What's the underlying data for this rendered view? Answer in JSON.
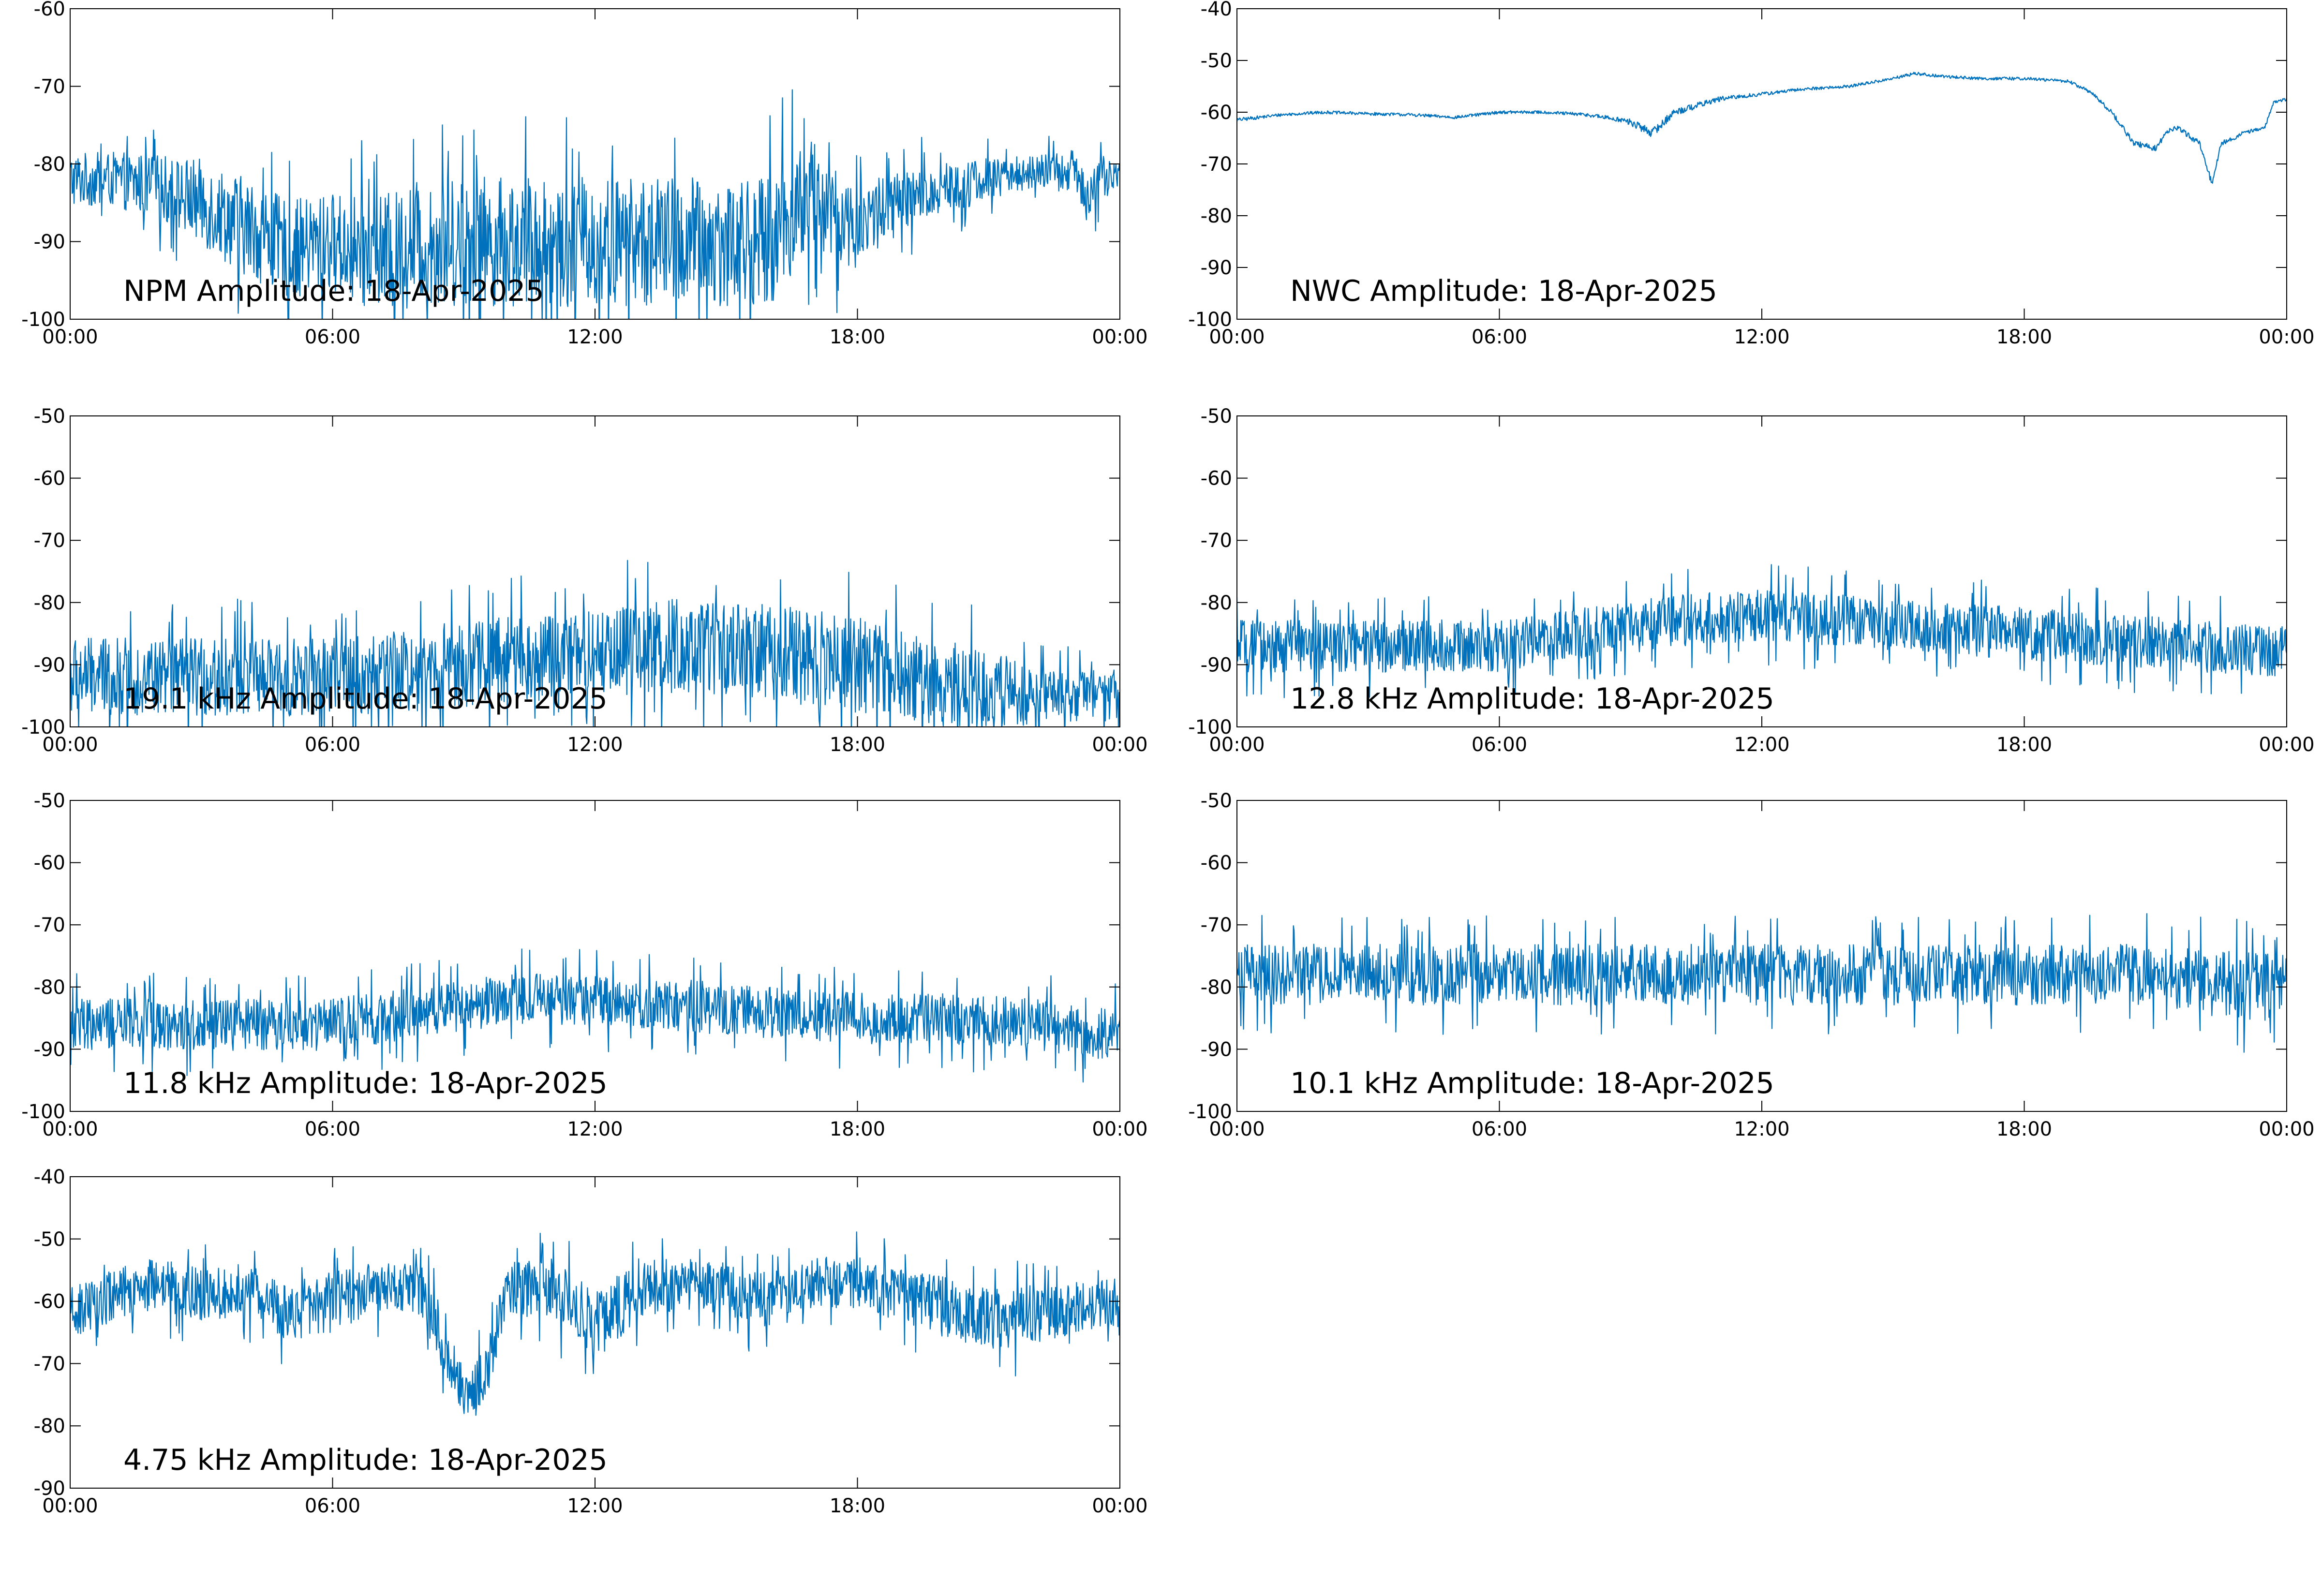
{
  "chart_data": [
    {
      "type": "line",
      "title": "NPM Amplitude: 18-Apr-2025",
      "xlabel": "",
      "ylabel": "",
      "x_ticks": [
        "00:00",
        "06:00",
        "12:00",
        "18:00",
        "00:00"
      ],
      "xlim_hours": [
        0,
        24
      ],
      "ylim": [
        -100,
        -60
      ],
      "y_ticks": [
        -100,
        -90,
        -80,
        -70,
        -60
      ],
      "line_color": "#0072BD",
      "grid": false,
      "series": [
        {
          "x_hours": [
            0,
            1,
            2,
            3,
            4,
            5,
            6,
            6.5,
            7,
            7.5,
            8,
            9,
            10,
            11,
            12,
            13,
            14,
            15,
            16,
            16.5,
            17,
            17.5,
            18,
            18.5,
            19,
            20,
            21,
            22,
            23,
            23.3,
            23.6,
            24
          ],
          "center": [
            -82,
            -82,
            -83,
            -85,
            -88,
            -91,
            -90,
            -91,
            -92,
            -91,
            -90,
            -90,
            -90,
            -90,
            -90,
            -90,
            -90,
            -90,
            -90,
            -86,
            -84,
            -87,
            -88,
            -86,
            -85,
            -83,
            -82,
            -81,
            -81,
            -84,
            -81,
            -82
          ],
          "spread": [
            5,
            5,
            6,
            8,
            9,
            9,
            9,
            10,
            11,
            11,
            12,
            12,
            12,
            12,
            12,
            12,
            12,
            12,
            12,
            12,
            10,
            9,
            8,
            7,
            6,
            5,
            4,
            3,
            4,
            6,
            3,
            3
          ]
        }
      ]
    },
    {
      "type": "line",
      "title": "NWC Amplitude: 18-Apr-2025",
      "xlabel": "",
      "ylabel": "",
      "x_ticks": [
        "00:00",
        "06:00",
        "12:00",
        "18:00",
        "00:00"
      ],
      "xlim_hours": [
        0,
        24
      ],
      "ylim": [
        -100,
        -40
      ],
      "y_ticks": [
        -100,
        -90,
        -80,
        -70,
        -60,
        -50,
        -40
      ],
      "line_color": "#0072BD",
      "grid": false,
      "series": [
        {
          "x_hours": [
            0,
            1,
            2,
            3,
            4,
            5,
            6,
            7,
            8,
            8.8,
            9,
            9.5,
            10,
            11,
            12,
            13,
            14,
            15,
            15.5,
            16,
            17,
            18,
            19,
            19.5,
            20,
            20.5,
            21,
            21.3,
            21.5,
            22,
            22.3,
            22.5,
            22.8,
            23,
            23.5,
            23.7,
            24
          ],
          "center": [
            -61.5,
            -60.5,
            -60,
            -60.3,
            -60.5,
            -61,
            -60,
            -60,
            -60.5,
            -61.5,
            -62,
            -64,
            -60,
            -57.5,
            -56.5,
            -55.5,
            -55,
            -53.5,
            -52.5,
            -53,
            -53.5,
            -53.5,
            -54,
            -56,
            -60,
            -66,
            -67,
            -63.5,
            -63,
            -66,
            -74,
            -66,
            -65,
            -64,
            -63,
            -58,
            -57.5
          ],
          "spread": [
            0.6,
            0.5,
            0.5,
            0.5,
            0.5,
            0.5,
            0.5,
            0.5,
            0.6,
            0.8,
            1.2,
            1.5,
            1.2,
            0.8,
            0.6,
            0.5,
            0.5,
            0.5,
            0.5,
            0.5,
            0.5,
            0.5,
            0.5,
            0.6,
            0.8,
            1,
            1,
            0.8,
            0.8,
            1,
            1,
            0.8,
            0.6,
            0.6,
            0.6,
            0.5,
            0.5
          ]
        }
      ]
    },
    {
      "type": "line",
      "title": "19.1 kHz Amplitude: 18-Apr-2025",
      "xlabel": "",
      "ylabel": "",
      "x_ticks": [
        "00:00",
        "06:00",
        "12:00",
        "18:00",
        "00:00"
      ],
      "xlim_hours": [
        0,
        24
      ],
      "ylim": [
        -100,
        -50
      ],
      "y_ticks": [
        -100,
        -90,
        -80,
        -70,
        -60,
        -50
      ],
      "line_color": "#0072BD",
      "grid": false,
      "series": [
        {
          "x_hours": [
            0,
            3,
            6,
            9,
            12,
            14,
            16,
            18,
            20,
            21.5,
            22,
            23,
            24
          ],
          "center": [
            -92,
            -92,
            -92,
            -90,
            -88,
            -87,
            -88,
            -90,
            -93,
            -95,
            -95,
            -95,
            -95
          ],
          "spread": [
            9,
            9,
            9,
            10,
            10,
            11,
            11,
            11,
            10,
            9,
            6,
            6,
            6
          ]
        }
      ]
    },
    {
      "type": "line",
      "title": "12.8 kHz Amplitude: 18-Apr-2025",
      "xlabel": "",
      "ylabel": "",
      "x_ticks": [
        "00:00",
        "06:00",
        "12:00",
        "18:00",
        "00:00"
      ],
      "xlim_hours": [
        0,
        24
      ],
      "ylim": [
        -100,
        -50
      ],
      "y_ticks": [
        -100,
        -90,
        -80,
        -70,
        -60,
        -50
      ],
      "line_color": "#0072BD",
      "grid": false,
      "series": [
        {
          "x_hours": [
            0,
            3,
            6,
            8,
            10,
            12,
            14,
            16,
            18,
            20,
            22,
            24
          ],
          "center": [
            -87,
            -87,
            -87,
            -85,
            -83,
            -82,
            -83,
            -84,
            -85,
            -86,
            -87,
            -88
          ],
          "spread": [
            6,
            6,
            6,
            6,
            6,
            6,
            6,
            6,
            6,
            6,
            6,
            6
          ]
        }
      ]
    },
    {
      "type": "line",
      "title": "11.8 kHz Amplitude: 18-Apr-2025",
      "xlabel": "",
      "ylabel": "",
      "x_ticks": [
        "00:00",
        "06:00",
        "12:00",
        "18:00",
        "00:00"
      ],
      "xlim_hours": [
        0,
        24
      ],
      "ylim": [
        -100,
        -50
      ],
      "y_ticks": [
        -100,
        -90,
        -80,
        -70,
        -60,
        -50
      ],
      "line_color": "#0072BD",
      "grid": false,
      "series": [
        {
          "x_hours": [
            0,
            3,
            6,
            8,
            10,
            12,
            14,
            16,
            18,
            20,
            22,
            24
          ],
          "center": [
            -86,
            -86,
            -86,
            -84,
            -82,
            -82,
            -83,
            -84,
            -85,
            -85,
            -86,
            -88
          ],
          "spread": [
            6,
            6,
            6,
            6,
            6,
            6,
            6,
            6,
            6,
            6,
            6,
            6
          ]
        }
      ]
    },
    {
      "type": "line",
      "title": "10.1 kHz Amplitude: 18-Apr-2025",
      "xlabel": "",
      "ylabel": "",
      "x_ticks": [
        "00:00",
        "06:00",
        "12:00",
        "18:00",
        "00:00"
      ],
      "xlim_hours": [
        0,
        24
      ],
      "ylim": [
        -100,
        -50
      ],
      "y_ticks": [
        -100,
        -90,
        -80,
        -70,
        -60,
        -50
      ],
      "line_color": "#0072BD",
      "grid": false,
      "series": [
        {
          "x_hours": [
            0,
            3,
            6,
            9,
            12,
            15,
            18,
            21,
            23,
            24
          ],
          "center": [
            -78,
            -78,
            -78,
            -78,
            -78,
            -78,
            -78,
            -78,
            -80,
            -80
          ],
          "spread": [
            7,
            7,
            7,
            7,
            7,
            7,
            7,
            7,
            8,
            8
          ]
        }
      ]
    },
    {
      "type": "line",
      "title": "4.75 kHz Amplitude: 18-Apr-2025",
      "xlabel": "",
      "ylabel": "",
      "x_ticks": [
        "00:00",
        "06:00",
        "12:00",
        "18:00",
        "00:00"
      ],
      "xlim_hours": [
        0,
        24
      ],
      "ylim": [
        -90,
        -40
      ],
      "y_ticks": [
        -90,
        -80,
        -70,
        -60,
        -50,
        -40
      ],
      "line_color": "#0072BD",
      "grid": false,
      "series": [
        {
          "x_hours": [
            0,
            1,
            2,
            3,
            4,
            5,
            6,
            7,
            8,
            8.5,
            9,
            9.5,
            10,
            11,
            12,
            13,
            14,
            15,
            16,
            17,
            18,
            19,
            20,
            21,
            22,
            23,
            24
          ],
          "center": [
            -62,
            -59,
            -57,
            -59,
            -58,
            -62,
            -60,
            -58,
            -58,
            -66,
            -74,
            -72,
            -58,
            -58,
            -64,
            -58,
            -57,
            -58,
            -60,
            -57,
            -57,
            -59,
            -61,
            -63,
            -62,
            -61,
            -60
          ],
          "spread": [
            6,
            6,
            6,
            6,
            6,
            7,
            7,
            6,
            6,
            8,
            6,
            6,
            6,
            7,
            8,
            7,
            6,
            6,
            7,
            6,
            6,
            6,
            7,
            7,
            7,
            6,
            6
          ]
        }
      ]
    }
  ]
}
